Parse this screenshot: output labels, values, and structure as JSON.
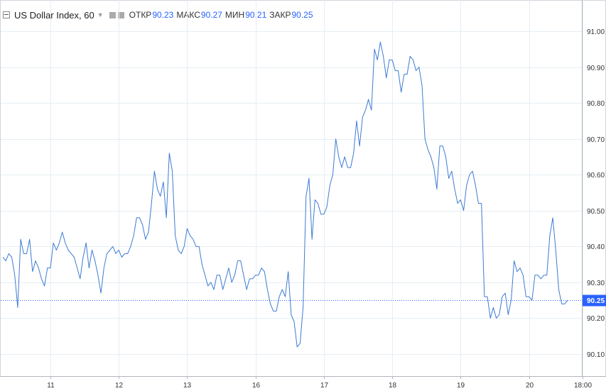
{
  "legend": {
    "symbol": "US Dollar Index, 60",
    "open_label": "ОТКР",
    "open_value": "90.23",
    "high_label": "МАКС",
    "high_value": "90.27",
    "low_label": "МИН",
    "low_value": "90.21",
    "close_label": "ЗАКР",
    "close_value": "90.25"
  },
  "colors": {
    "line": "#3d7bd4",
    "badge": "#2962ff",
    "grid": "#e6eef4"
  },
  "chart_data": {
    "type": "line",
    "title": "US Dollar Index, 60",
    "ylim": [
      90.05,
      91.12
    ],
    "y_ticks": [
      "91.00",
      "90.90",
      "90.80",
      "90.70",
      "90.60",
      "90.50",
      "90.40",
      "90.30",
      "90.20",
      "90.10"
    ],
    "y_tick_values": [
      91.0,
      90.9,
      90.8,
      90.7,
      90.6,
      90.5,
      90.4,
      90.3,
      90.2,
      90.1
    ],
    "x_tick_labels": [
      "11",
      "12",
      "13",
      "16",
      "17",
      "18",
      "19",
      "20",
      "18:00"
    ],
    "x_tick_index": [
      16,
      39,
      62,
      85,
      108,
      131,
      154,
      177,
      195
    ],
    "last_price": 90.25,
    "last_price_label": "90.25",
    "series": [
      {
        "values": [
          90.37,
          90.36,
          90.38,
          90.37,
          90.32,
          90.23,
          90.42,
          90.38,
          90.38,
          90.42,
          90.33,
          90.36,
          90.34,
          90.31,
          90.29,
          90.34,
          90.34,
          90.41,
          90.39,
          90.41,
          90.44,
          90.41,
          90.39,
          90.38,
          90.37,
          90.34,
          90.31,
          90.37,
          90.41,
          90.34,
          90.39,
          90.36,
          90.32,
          90.27,
          90.34,
          90.38,
          90.39,
          90.4,
          90.38,
          90.39,
          90.37,
          90.38,
          90.38,
          90.4,
          90.43,
          90.48,
          90.48,
          90.46,
          90.42,
          90.44,
          90.52,
          90.61,
          90.56,
          90.54,
          90.58,
          90.48,
          90.66,
          90.61,
          90.43,
          90.39,
          90.38,
          90.4,
          90.45,
          90.43,
          90.42,
          90.4,
          90.4,
          90.35,
          90.32,
          90.29,
          90.3,
          90.28,
          90.32,
          90.32,
          90.28,
          90.31,
          90.34,
          90.3,
          90.32,
          90.36,
          90.36,
          90.32,
          90.28,
          90.31,
          90.31,
          90.32,
          90.32,
          90.34,
          90.33,
          90.28,
          90.24,
          90.22,
          90.22,
          90.26,
          90.28,
          90.26,
          90.33,
          90.21,
          90.19,
          90.12,
          90.13,
          90.23,
          90.54,
          90.59,
          90.42,
          90.53,
          90.52,
          90.49,
          90.49,
          90.51,
          90.57,
          90.6,
          90.7,
          90.65,
          90.62,
          90.65,
          90.62,
          90.62,
          90.66,
          90.75,
          90.68,
          90.76,
          90.78,
          90.81,
          90.78,
          90.95,
          90.92,
          90.97,
          90.93,
          90.87,
          90.92,
          90.92,
          90.89,
          90.89,
          90.83,
          90.88,
          90.88,
          90.93,
          90.92,
          90.89,
          90.9,
          90.85,
          90.7,
          90.67,
          90.65,
          90.62,
          90.56,
          90.68,
          90.68,
          90.65,
          90.59,
          90.61,
          90.56,
          90.52,
          90.53,
          90.5,
          90.57,
          90.6,
          90.61,
          90.57,
          90.52,
          90.52,
          90.26,
          90.26,
          90.2,
          90.23,
          90.2,
          90.21,
          90.26,
          90.27,
          90.21,
          90.25,
          90.36,
          90.33,
          90.34,
          90.32,
          90.26,
          90.26,
          90.25,
          90.32,
          90.32,
          90.31,
          90.32,
          90.32,
          90.43,
          90.48,
          90.39,
          90.28,
          90.24,
          90.24,
          90.25
        ]
      }
    ]
  }
}
